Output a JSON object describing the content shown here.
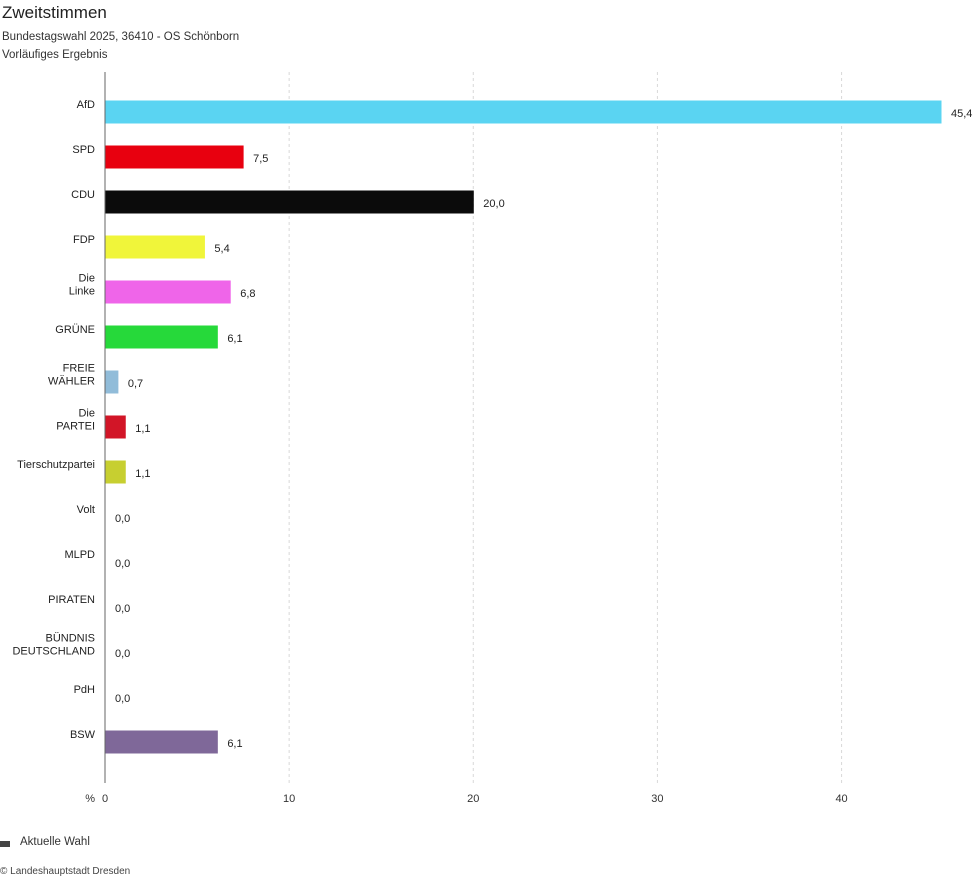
{
  "title": "Zweitstimmen",
  "subtitle": "Bundestagswahl 2025, 36410 - OS Schönborn",
  "subtitle2": "Vorläufiges Ergebnis",
  "legend": {
    "label": "Aktuelle Wahl"
  },
  "copyright": "© Landeshauptstadt Dresden",
  "chart_data": {
    "type": "bar",
    "orientation": "horizontal",
    "x_unit_label": "%",
    "xlim": [
      0,
      45.4
    ],
    "xticks": [
      "0",
      "10",
      "20",
      "30",
      "40"
    ],
    "grid": true,
    "legend_position": "bottom-left",
    "categories": [
      [
        "AfD"
      ],
      [
        "SPD"
      ],
      [
        "CDU"
      ],
      [
        "FDP"
      ],
      [
        "Die",
        "Linke"
      ],
      [
        "GRÜNE"
      ],
      [
        "FREIE",
        "WÄHLER"
      ],
      [
        "Die",
        "PARTEI"
      ],
      [
        "Tierschutzpartei"
      ],
      [
        "Volt"
      ],
      [
        "MLPD"
      ],
      [
        "PIRATEN"
      ],
      [
        "BÜNDNIS",
        "DEUTSCHLAND"
      ],
      [
        "PdH"
      ],
      [
        "BSW"
      ]
    ],
    "values": [
      45.4,
      7.5,
      20.0,
      5.4,
      6.8,
      6.1,
      0.7,
      1.1,
      1.1,
      0.0,
      0.0,
      0.0,
      0.0,
      0.0,
      6.1
    ],
    "value_labels": [
      "45,4",
      "7,5",
      "20,0",
      "5,4",
      "6,8",
      "6,1",
      "0,7",
      "1,1",
      "1,1",
      "0,0",
      "0,0",
      "0,0",
      "0,0",
      "0,0",
      "6,1"
    ],
    "colors": [
      "#5ad4f2",
      "#e8000f",
      "#0b0b0b",
      "#f0f53a",
      "#ef65e9",
      "#26d93a",
      "#91bcd9",
      "#d21527",
      "#c7cf30",
      "#8a4fa0",
      "#d41c20",
      "#f28c00",
      "#1e3a8a",
      "#999999",
      "#7f6899"
    ]
  }
}
